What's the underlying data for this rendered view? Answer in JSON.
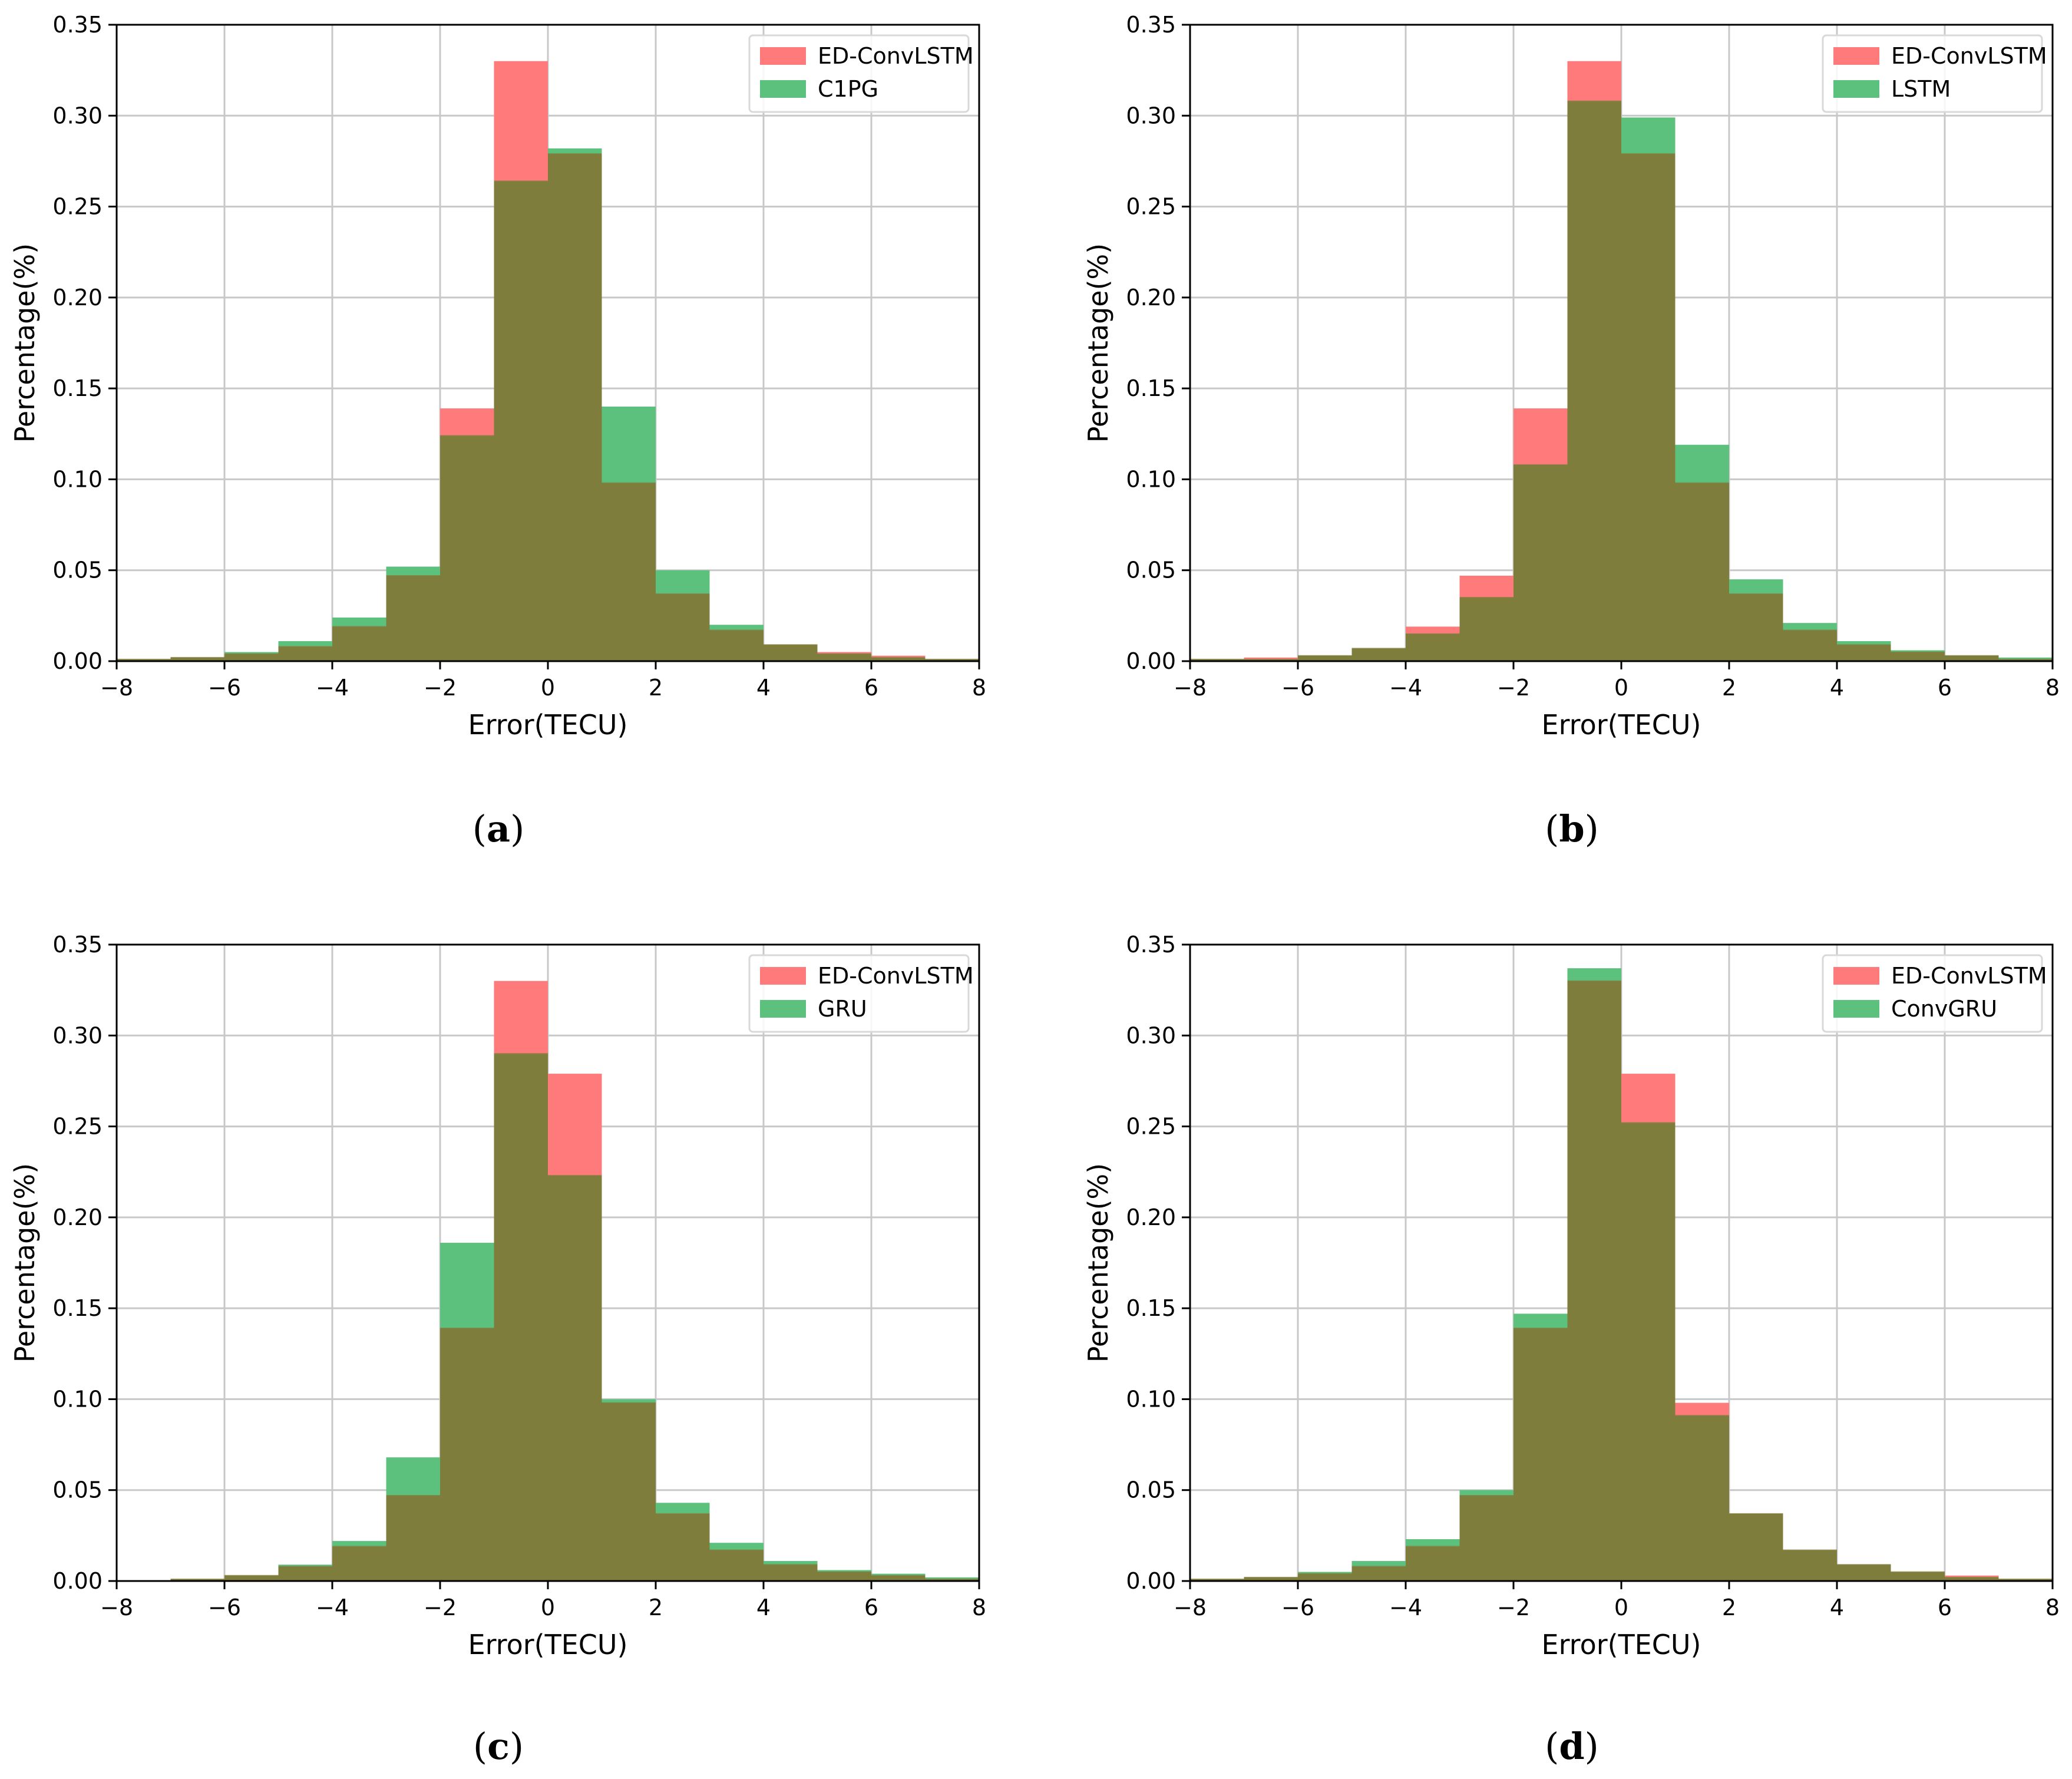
{
  "figure": {
    "shared": {
      "xlabel": "Error(TECU)",
      "ylabel": "Percentage(%)",
      "xticks": [
        -8,
        -6,
        -4,
        -2,
        0,
        2,
        4,
        6,
        8
      ],
      "yticks": [
        0.0,
        0.05,
        0.1,
        0.15,
        0.2,
        0.25,
        0.3,
        0.35
      ]
    },
    "colors": {
      "ed_convlstm": "#ff7b7b",
      "comparison": "#5cc17c",
      "overlap": "#7f7d3c",
      "axis": "#000000",
      "grid": "#c8c8c8"
    }
  },
  "panels": [
    {
      "caption_letter": "a",
      "legend": [
        "ED-ConvLSTM",
        "C1PG"
      ]
    },
    {
      "caption_letter": "b",
      "legend": [
        "ED-ConvLSTM",
        "LSTM"
      ]
    },
    {
      "caption_letter": "c",
      "legend": [
        "ED-ConvLSTM",
        "GRU"
      ]
    },
    {
      "caption_letter": "d",
      "legend": [
        "ED-ConvLSTM",
        "ConvGRU"
      ]
    }
  ],
  "chart_data": [
    {
      "type": "histogram",
      "title": "",
      "xlabel": "Error(TECU)",
      "ylabel": "Percentage(%)",
      "xlim": [
        -8,
        8
      ],
      "ylim": [
        0,
        0.35
      ],
      "grid": true,
      "legend_position": "top-right",
      "bin_edges": [
        -8,
        -7,
        -6,
        -5,
        -4,
        -3,
        -2,
        -1,
        0,
        1,
        2,
        3,
        4,
        5,
        6,
        7,
        8
      ],
      "series": [
        {
          "name": "ED-ConvLSTM",
          "values": [
            0.001,
            0.002,
            0.004,
            0.008,
            0.019,
            0.047,
            0.139,
            0.33,
            0.279,
            0.098,
            0.037,
            0.017,
            0.009,
            0.005,
            0.003,
            0.001
          ]
        },
        {
          "name": "C1PG",
          "values": [
            0.001,
            0.002,
            0.005,
            0.011,
            0.024,
            0.052,
            0.124,
            0.264,
            0.282,
            0.14,
            0.05,
            0.02,
            0.009,
            0.004,
            0.002,
            0.001
          ]
        }
      ]
    },
    {
      "type": "histogram",
      "title": "",
      "xlabel": "Error(TECU)",
      "ylabel": "Percentage(%)",
      "xlim": [
        -8,
        8
      ],
      "ylim": [
        0,
        0.35
      ],
      "grid": true,
      "legend_position": "top-right",
      "bin_edges": [
        -8,
        -7,
        -6,
        -5,
        -4,
        -3,
        -2,
        -1,
        0,
        1,
        2,
        3,
        4,
        5,
        6,
        7,
        8
      ],
      "series": [
        {
          "name": "ED-ConvLSTM",
          "values": [
            0.001,
            0.002,
            0.003,
            0.007,
            0.019,
            0.047,
            0.139,
            0.33,
            0.279,
            0.098,
            0.037,
            0.017,
            0.009,
            0.005,
            0.003,
            0.001
          ]
        },
        {
          "name": "LSTM",
          "values": [
            0.001,
            0.001,
            0.003,
            0.007,
            0.015,
            0.035,
            0.108,
            0.308,
            0.299,
            0.119,
            0.045,
            0.021,
            0.011,
            0.006,
            0.003,
            0.002
          ]
        }
      ]
    },
    {
      "type": "histogram",
      "title": "",
      "xlabel": "Error(TECU)",
      "ylabel": "Percentage(%)",
      "xlim": [
        -8,
        8
      ],
      "ylim": [
        0,
        0.35
      ],
      "grid": true,
      "legend_position": "top-right",
      "bin_edges": [
        -8,
        -7,
        -6,
        -5,
        -4,
        -3,
        -2,
        -1,
        0,
        1,
        2,
        3,
        4,
        5,
        6,
        7,
        8
      ],
      "series": [
        {
          "name": "ED-ConvLSTM",
          "values": [
            0.0,
            0.001,
            0.003,
            0.008,
            0.019,
            0.047,
            0.139,
            0.33,
            0.279,
            0.098,
            0.037,
            0.017,
            0.009,
            0.005,
            0.003,
            0.001
          ]
        },
        {
          "name": "GRU",
          "values": [
            0.0,
            0.001,
            0.003,
            0.009,
            0.022,
            0.068,
            0.186,
            0.29,
            0.223,
            0.1,
            0.043,
            0.021,
            0.011,
            0.006,
            0.004,
            0.002
          ]
        }
      ]
    },
    {
      "type": "histogram",
      "title": "",
      "xlabel": "Error(TECU)",
      "ylabel": "Percentage(%)",
      "xlim": [
        -8,
        8
      ],
      "ylim": [
        0,
        0.35
      ],
      "grid": true,
      "legend_position": "top-right",
      "bin_edges": [
        -8,
        -7,
        -6,
        -5,
        -4,
        -3,
        -2,
        -1,
        0,
        1,
        2,
        3,
        4,
        5,
        6,
        7,
        8
      ],
      "series": [
        {
          "name": "ED-ConvLSTM",
          "values": [
            0.001,
            0.002,
            0.004,
            0.008,
            0.019,
            0.047,
            0.139,
            0.33,
            0.279,
            0.098,
            0.037,
            0.017,
            0.009,
            0.005,
            0.003,
            0.001
          ]
        },
        {
          "name": "ConvGRU",
          "values": [
            0.001,
            0.002,
            0.005,
            0.011,
            0.023,
            0.05,
            0.147,
            0.337,
            0.252,
            0.091,
            0.037,
            0.017,
            0.009,
            0.005,
            0.002,
            0.001
          ]
        }
      ]
    }
  ]
}
